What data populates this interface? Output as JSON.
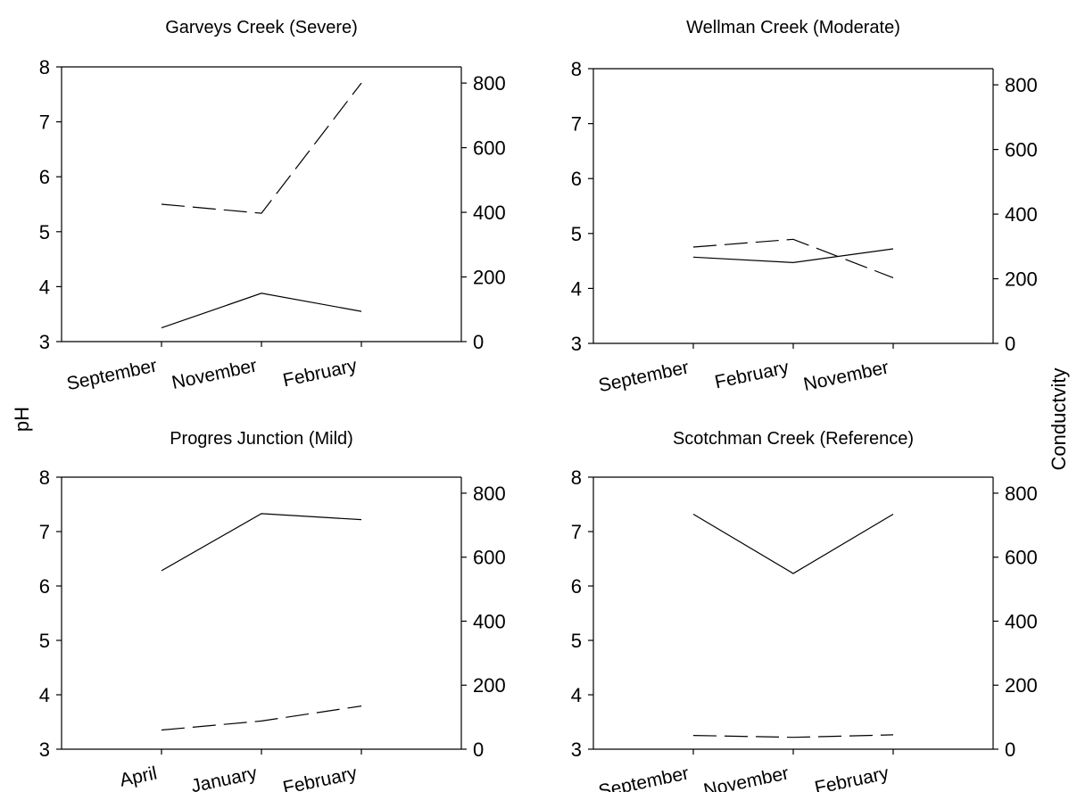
{
  "shared_labels": {
    "left_axis": "pH",
    "right_axis": "Conductvity"
  },
  "chart_data": [
    {
      "type": "line",
      "title": "Garveys Creek (Severe)",
      "categories": [
        "September",
        "November",
        "February"
      ],
      "ylim_left": [
        3,
        8
      ],
      "ylim_right": [
        0,
        850
      ],
      "yticks_left": [
        3,
        4,
        5,
        6,
        7,
        8
      ],
      "yticks_right": [
        0,
        200,
        400,
        600,
        800
      ],
      "series": [
        {
          "axis": "left",
          "style": "solid",
          "values": [
            3.25,
            3.88,
            3.55
          ]
        },
        {
          "axis": "right",
          "style": "dashed",
          "values": [
            425,
            397,
            800
          ]
        }
      ]
    },
    {
      "type": "line",
      "title": "Wellman Creek (Moderate)",
      "categories": [
        "September",
        "February",
        "November"
      ],
      "ylim_left": [
        3,
        8
      ],
      "ylim_right": [
        0,
        850
      ],
      "yticks_left": [
        3,
        4,
        5,
        6,
        7,
        8
      ],
      "yticks_right": [
        0,
        200,
        400,
        600,
        800
      ],
      "series": [
        {
          "axis": "left",
          "style": "solid",
          "values": [
            4.57,
            4.47,
            4.72
          ]
        },
        {
          "axis": "right",
          "style": "dashed",
          "values": [
            298,
            322,
            203
          ]
        }
      ]
    },
    {
      "type": "line",
      "title": "Progres Junction (Mild)",
      "categories": [
        "April",
        "January",
        "February"
      ],
      "ylim_left": [
        3,
        8
      ],
      "ylim_right": [
        0,
        850
      ],
      "yticks_left": [
        3,
        4,
        5,
        6,
        7,
        8
      ],
      "yticks_right": [
        0,
        200,
        400,
        600,
        800
      ],
      "series": [
        {
          "axis": "left",
          "style": "solid",
          "values": [
            6.28,
            7.33,
            7.22
          ]
        },
        {
          "axis": "right",
          "style": "dashed",
          "values": [
            60,
            88,
            135
          ]
        }
      ]
    },
    {
      "type": "line",
      "title": "Scotchman Creek (Reference)",
      "categories": [
        "September",
        "November",
        "February"
      ],
      "ylim_left": [
        3,
        8
      ],
      "ylim_right": [
        0,
        850
      ],
      "yticks_left": [
        3,
        4,
        5,
        6,
        7,
        8
      ],
      "yticks_right": [
        0,
        200,
        400,
        600,
        800
      ],
      "series": [
        {
          "axis": "left",
          "style": "solid",
          "values": [
            7.32,
            6.23,
            7.32
          ]
        },
        {
          "axis": "right",
          "style": "dashed",
          "values": [
            43,
            37,
            45
          ]
        }
      ]
    }
  ]
}
